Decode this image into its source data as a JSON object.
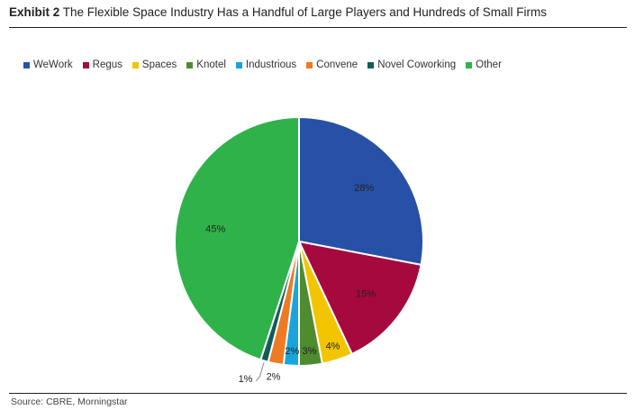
{
  "header": {
    "exhibit": "Exhibit 2",
    "title": "The Flexible Space Industry Has a Handful of Large Players and Hundreds of Small Firms"
  },
  "source": "Source: CBRE, Morningstar",
  "chart_data": {
    "type": "pie",
    "labels": [
      "WeWork",
      "Regus",
      "Spaces",
      "Knotel",
      "Industrious",
      "Convene",
      "Novel Coworking",
      "Other"
    ],
    "values": [
      28,
      15,
      4,
      3,
      2,
      2,
      1,
      45
    ],
    "value_labels": [
      "28%",
      "15%",
      "4%",
      "3%",
      "2%",
      "2%",
      "1%",
      "45%"
    ],
    "colors": [
      "#2651a6",
      "#a6093d",
      "#f2c500",
      "#4f8b2f",
      "#1aa4db",
      "#ee7b22",
      "#0f5c58",
      "#2fb24a"
    ],
    "legend_position": "top",
    "start": "12 o'clock, clockwise"
  }
}
